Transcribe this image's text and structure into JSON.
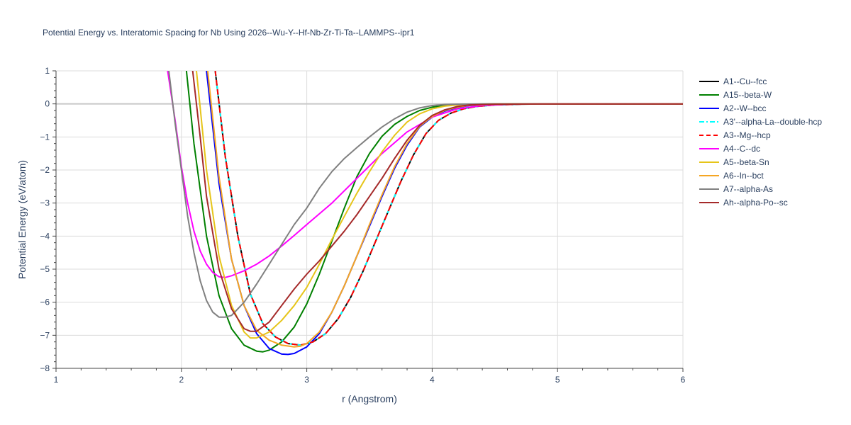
{
  "chart_data": {
    "type": "line",
    "title": "Potential Energy vs. Interatomic Spacing for Nb Using 2026--Wu-Y--Hf-Nb-Zr-Ti-Ta--LAMMPS--ipr1",
    "xlabel": "r (Angstrom)",
    "ylabel": "Potential Energy (eV/atom)",
    "xlim": [
      1,
      6
    ],
    "ylim": [
      -8,
      1
    ],
    "xticks": [
      1,
      2,
      3,
      4,
      5,
      6
    ],
    "yticks": [
      1,
      0,
      -1,
      -2,
      -3,
      -4,
      -5,
      -6,
      -7,
      -8
    ],
    "grid": true,
    "legend_position": "right",
    "series": [
      {
        "name": "A1--Cu--fcc",
        "color": "#000000",
        "dash": "solid",
        "x": [
          2.27,
          2.35,
          2.45,
          2.55,
          2.65,
          2.75,
          2.85,
          2.95,
          3.05,
          3.15,
          3.25,
          3.35,
          3.45,
          3.55,
          3.65,
          3.75,
          3.85,
          3.95,
          4.05,
          4.15,
          4.25,
          4.35,
          4.5,
          4.7,
          5.0,
          6.0
        ],
        "y": [
          1.0,
          -1.6,
          -4.0,
          -5.75,
          -6.65,
          -7.05,
          -7.25,
          -7.3,
          -7.2,
          -6.95,
          -6.5,
          -5.85,
          -5.05,
          -4.15,
          -3.25,
          -2.35,
          -1.55,
          -0.9,
          -0.5,
          -0.28,
          -0.15,
          -0.08,
          -0.03,
          -0.01,
          0.0,
          0.0
        ]
      },
      {
        "name": "A15--beta-W",
        "color": "#008000",
        "dash": "solid",
        "x": [
          2.04,
          2.1,
          2.2,
          2.3,
          2.4,
          2.5,
          2.6,
          2.65,
          2.7,
          2.8,
          2.9,
          3.0,
          3.1,
          3.2,
          3.3,
          3.4,
          3.5,
          3.6,
          3.7,
          3.8,
          3.9,
          4.0,
          4.1,
          4.2,
          4.3,
          4.5,
          5.0,
          6.0
        ],
        "y": [
          1.0,
          -1.2,
          -4.0,
          -5.8,
          -6.8,
          -7.3,
          -7.48,
          -7.5,
          -7.45,
          -7.2,
          -6.75,
          -6.05,
          -5.15,
          -4.15,
          -3.15,
          -2.2,
          -1.5,
          -0.98,
          -0.62,
          -0.38,
          -0.2,
          -0.1,
          -0.05,
          -0.02,
          -0.01,
          0.0,
          0.0,
          0.0
        ]
      },
      {
        "name": "A2--W--bcc",
        "color": "#0000ff",
        "dash": "solid",
        "x": [
          2.2,
          2.3,
          2.4,
          2.5,
          2.6,
          2.7,
          2.8,
          2.85,
          2.9,
          3.0,
          3.1,
          3.2,
          3.3,
          3.4,
          3.5,
          3.6,
          3.7,
          3.8,
          3.9,
          4.0,
          4.1,
          4.2,
          4.3,
          4.5,
          5.0,
          6.0
        ],
        "y": [
          1.0,
          -2.4,
          -4.7,
          -6.1,
          -6.95,
          -7.4,
          -7.57,
          -7.58,
          -7.55,
          -7.35,
          -6.95,
          -6.3,
          -5.5,
          -4.6,
          -3.7,
          -2.8,
          -1.95,
          -1.25,
          -0.7,
          -0.4,
          -0.22,
          -0.11,
          -0.05,
          -0.01,
          0.0,
          0.0
        ]
      },
      {
        "name": "A3'--alpha-La--double-hcp",
        "color": "#00ffff",
        "dash": "dashdot",
        "x": [
          2.27,
          2.35,
          2.45,
          2.55,
          2.65,
          2.75,
          2.85,
          2.95,
          3.05,
          3.15,
          3.25,
          3.35,
          3.45,
          3.55,
          3.65,
          3.75,
          3.85,
          3.95,
          4.05,
          4.15,
          4.25,
          4.35,
          4.5,
          4.7,
          5.0,
          6.0
        ],
        "y": [
          1.0,
          -1.6,
          -4.0,
          -5.75,
          -6.65,
          -7.05,
          -7.25,
          -7.3,
          -7.2,
          -6.95,
          -6.5,
          -5.85,
          -5.05,
          -4.15,
          -3.25,
          -2.35,
          -1.55,
          -0.9,
          -0.5,
          -0.28,
          -0.15,
          -0.08,
          -0.03,
          -0.01,
          0.0,
          0.0
        ]
      },
      {
        "name": "A3--Mg--hcp",
        "color": "#ff0000",
        "dash": "dash",
        "x": [
          2.27,
          2.35,
          2.45,
          2.55,
          2.65,
          2.75,
          2.85,
          2.95,
          3.05,
          3.15,
          3.25,
          3.35,
          3.45,
          3.55,
          3.65,
          3.75,
          3.85,
          3.95,
          4.05,
          4.15,
          4.25,
          4.35,
          4.5,
          4.7,
          5.0,
          6.0
        ],
        "y": [
          1.0,
          -1.6,
          -4.0,
          -5.75,
          -6.65,
          -7.05,
          -7.25,
          -7.3,
          -7.2,
          -6.95,
          -6.5,
          -5.85,
          -5.05,
          -4.15,
          -3.25,
          -2.35,
          -1.55,
          -0.9,
          -0.5,
          -0.28,
          -0.15,
          -0.08,
          -0.03,
          -0.01,
          0.0,
          0.0
        ]
      },
      {
        "name": "A4--C--dc",
        "color": "#ff00ff",
        "dash": "solid",
        "x": [
          1.89,
          1.95,
          2.0,
          2.05,
          2.1,
          2.15,
          2.2,
          2.25,
          2.3,
          2.35,
          2.4,
          2.5,
          2.6,
          2.7,
          2.8,
          2.9,
          3.0,
          3.2,
          3.4,
          3.6,
          3.8,
          4.0,
          4.2,
          4.4,
          4.6,
          5.0,
          6.0
        ],
        "y": [
          1.0,
          -0.5,
          -1.9,
          -3.0,
          -3.85,
          -4.45,
          -4.85,
          -5.1,
          -5.23,
          -5.25,
          -5.2,
          -5.05,
          -4.85,
          -4.6,
          -4.3,
          -3.98,
          -3.65,
          -3.0,
          -2.25,
          -1.5,
          -0.85,
          -0.4,
          -0.15,
          -0.05,
          -0.01,
          0.0,
          0.0
        ]
      },
      {
        "name": "A5--beta-Sn",
        "color": "#e6c519",
        "dash": "solid",
        "x": [
          2.12,
          2.2,
          2.3,
          2.4,
          2.5,
          2.55,
          2.6,
          2.7,
          2.8,
          2.9,
          3.0,
          3.1,
          3.2,
          3.3,
          3.4,
          3.5,
          3.6,
          3.7,
          3.8,
          3.9,
          4.0,
          4.1,
          4.2,
          4.3,
          4.5,
          5.0,
          6.0
        ],
        "y": [
          1.0,
          -2.0,
          -4.6,
          -6.1,
          -6.9,
          -7.08,
          -7.08,
          -6.9,
          -6.55,
          -6.1,
          -5.55,
          -4.85,
          -4.1,
          -3.4,
          -2.7,
          -2.05,
          -1.45,
          -0.95,
          -0.55,
          -0.3,
          -0.15,
          -0.07,
          -0.03,
          -0.01,
          0.0,
          0.0,
          0.0
        ]
      },
      {
        "name": "A6--In--bct",
        "color": "#f5a623",
        "dash": "solid",
        "x": [
          2.21,
          2.3,
          2.4,
          2.5,
          2.6,
          2.7,
          2.8,
          2.9,
          2.95,
          3.0,
          3.1,
          3.2,
          3.3,
          3.4,
          3.5,
          3.6,
          3.7,
          3.8,
          3.9,
          4.0,
          4.1,
          4.2,
          4.3,
          4.5,
          5.0,
          6.0
        ],
        "y": [
          1.0,
          -2.2,
          -4.7,
          -6.1,
          -6.85,
          -7.15,
          -7.3,
          -7.35,
          -7.33,
          -7.25,
          -6.9,
          -6.3,
          -5.5,
          -4.6,
          -3.65,
          -2.75,
          -1.9,
          -1.2,
          -0.68,
          -0.38,
          -0.2,
          -0.1,
          -0.04,
          -0.01,
          0.0,
          0.0
        ]
      },
      {
        "name": "A7--alpha-As",
        "color": "#808080",
        "dash": "solid",
        "x": [
          1.9,
          1.95,
          2.0,
          2.05,
          2.1,
          2.15,
          2.2,
          2.25,
          2.3,
          2.35,
          2.4,
          2.45,
          2.5,
          2.6,
          2.7,
          2.8,
          2.9,
          3.0,
          3.1,
          3.2,
          3.3,
          3.4,
          3.5,
          3.6,
          3.7,
          3.8,
          3.9,
          4.0,
          4.1,
          4.2,
          4.4,
          5.0,
          6.0
        ],
        "y": [
          1.0,
          -0.6,
          -2.0,
          -3.4,
          -4.5,
          -5.35,
          -5.95,
          -6.3,
          -6.45,
          -6.45,
          -6.4,
          -6.2,
          -6.0,
          -5.45,
          -4.85,
          -4.25,
          -3.65,
          -3.15,
          -2.55,
          -2.05,
          -1.65,
          -1.32,
          -1.0,
          -0.7,
          -0.45,
          -0.25,
          -0.12,
          -0.05,
          -0.02,
          -0.01,
          0.0,
          0.0,
          0.0
        ]
      },
      {
        "name": "Ah--alpha-Po--sc",
        "color": "#a52a2a",
        "dash": "solid",
        "x": [
          2.09,
          2.15,
          2.2,
          2.3,
          2.4,
          2.5,
          2.55,
          2.6,
          2.7,
          2.8,
          2.9,
          3.0,
          3.1,
          3.2,
          3.3,
          3.4,
          3.5,
          3.6,
          3.7,
          3.8,
          3.9,
          4.0,
          4.1,
          4.2,
          4.3,
          4.5,
          5.0,
          6.0
        ],
        "y": [
          1.0,
          -1.0,
          -2.8,
          -5.0,
          -6.2,
          -6.8,
          -6.88,
          -6.88,
          -6.6,
          -6.1,
          -5.6,
          -5.15,
          -4.75,
          -4.3,
          -3.85,
          -3.35,
          -2.8,
          -2.25,
          -1.65,
          -1.1,
          -0.65,
          -0.35,
          -0.18,
          -0.08,
          -0.03,
          -0.01,
          0.0,
          0.0
        ]
      }
    ]
  }
}
